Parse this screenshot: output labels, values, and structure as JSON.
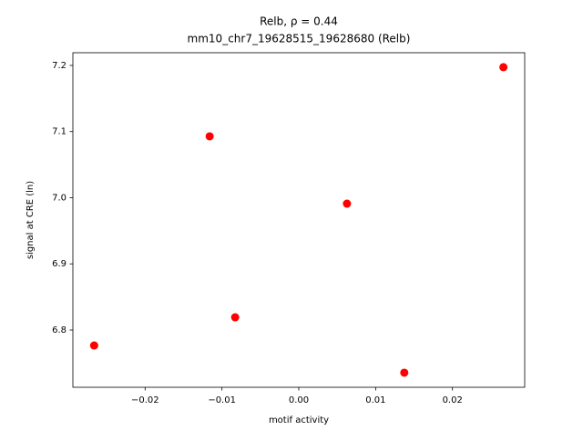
{
  "chart_data": {
    "type": "scatter",
    "title": "Relb, ρ = 0.44",
    "subtitle": "mm10_chr7_19628515_19628680 (Relb)",
    "x_label": "motif activity",
    "y_label": "signal at CRE (ln)",
    "series": [
      {
        "color": "#ff0000",
        "x": [
          -0.02663,
          -0.0116,
          -0.00828,
          0.00627,
          0.01373,
          0.02663
        ],
        "values": [
          6.7766,
          7.0928,
          6.8192,
          6.991,
          6.7354,
          7.1973
        ]
      }
    ],
    "xlim": [
      -0.0294,
      0.0294
    ],
    "ylim": [
      6.7134,
      7.2192
    ],
    "xticks": [
      {
        "value": -0.02,
        "label": "−0.02"
      },
      {
        "value": -0.01,
        "label": "−0.01"
      },
      {
        "value": 0,
        "label": "0.00"
      },
      0.01,
      0.02
    ],
    "yticks": [
      6.8,
      6.9,
      {
        "value": 7.0,
        "label": "7.0"
      },
      7.1,
      7.2
    ]
  }
}
